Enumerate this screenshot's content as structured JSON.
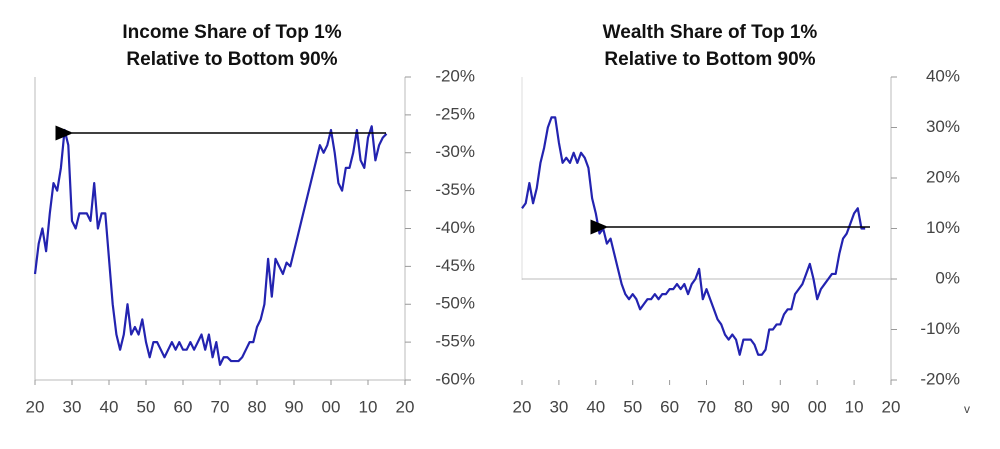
{
  "chart_data": [
    {
      "type": "line",
      "title": [
        "Income Share of Top 1%",
        "Relative to Bottom 90%"
      ],
      "x": [
        1920,
        1921,
        1922,
        1923,
        1924,
        1925,
        1926,
        1927,
        1928,
        1929,
        1930,
        1931,
        1932,
        1933,
        1934,
        1935,
        1936,
        1937,
        1938,
        1939,
        1940,
        1941,
        1942,
        1943,
        1944,
        1945,
        1946,
        1947,
        1948,
        1949,
        1950,
        1951,
        1952,
        1953,
        1954,
        1955,
        1956,
        1957,
        1958,
        1959,
        1960,
        1961,
        1962,
        1963,
        1964,
        1965,
        1966,
        1967,
        1968,
        1969,
        1970,
        1971,
        1972,
        1973,
        1974,
        1975,
        1976,
        1977,
        1978,
        1979,
        1980,
        1981,
        1982,
        1983,
        1984,
        1985,
        1986,
        1987,
        1988,
        1989,
        1990,
        1991,
        1992,
        1993,
        1994,
        1995,
        1996,
        1997,
        1998,
        1999,
        2000,
        2001,
        2002,
        2003,
        2004,
        2005,
        2006,
        2007,
        2008,
        2009,
        2010,
        2011,
        2012,
        2013,
        2014,
        2015
      ],
      "series": [
        {
          "color": "#2323b0",
          "values": [
            -46,
            -42,
            -40,
            -43,
            -38,
            -34,
            -35,
            -32,
            -27,
            -29,
            -39,
            -40,
            -38,
            -38,
            -38,
            -39,
            -34,
            -40,
            -38,
            -38,
            -44,
            -50,
            -54,
            -56,
            -54,
            -50,
            -54,
            -53,
            -54,
            -52,
            -55,
            -57,
            -55,
            -55,
            -56,
            -57,
            -56,
            -55,
            -56,
            -55,
            -56,
            -56,
            -55,
            -56,
            -55,
            -54,
            -56,
            -54,
            -57,
            -55,
            -58,
            -57,
            -57,
            -57.5,
            -57.5,
            -57.5,
            -57,
            -56,
            -55,
            -55,
            -53,
            -52,
            -50,
            -44,
            -49,
            -44,
            -45,
            -46,
            -44.5,
            -45,
            -43,
            -41,
            -39,
            -37,
            -35,
            -33,
            -31,
            -29,
            -30,
            -29,
            -27,
            -30,
            -34,
            -35,
            -32,
            -32,
            -30,
            -27,
            -31,
            -32,
            -28,
            -26.5,
            -31,
            -29,
            -28,
            -27.5
          ]
        }
      ],
      "xlim": [
        1920,
        2020
      ],
      "xticks": [
        {
          "value": 1920,
          "label": "20"
        },
        {
          "value": 1930,
          "label": "30"
        },
        {
          "value": 1940,
          "label": "40"
        },
        {
          "value": 1950,
          "label": "50"
        },
        {
          "value": 1960,
          "label": "60"
        },
        {
          "value": 1970,
          "label": "70"
        },
        {
          "value": 1980,
          "label": "80"
        },
        {
          "value": 1990,
          "label": "90"
        },
        {
          "value": 2000,
          "label": "00"
        },
        {
          "value": 2010,
          "label": "10"
        },
        {
          "value": 2020,
          "label": "20"
        }
      ],
      "ylim": [
        -60,
        -20
      ],
      "yticks": [
        {
          "value": -20,
          "label": "-20%"
        },
        {
          "value": -25,
          "label": "-25%"
        },
        {
          "value": -30,
          "label": "-30%"
        },
        {
          "value": -35,
          "label": "-35%"
        },
        {
          "value": -40,
          "label": "-40%"
        },
        {
          "value": -45,
          "label": "-45%"
        },
        {
          "value": -50,
          "label": "-50%"
        },
        {
          "value": -55,
          "label": "-55%"
        },
        {
          "value": -60,
          "label": "-60%"
        }
      ],
      "zero_line": false
    },
    {
      "type": "line",
      "title": [
        "Wealth Share of Top 1%",
        "Relative to Bottom 90%"
      ],
      "x": [
        1920,
        1921,
        1922,
        1923,
        1924,
        1925,
        1926,
        1927,
        1928,
        1929,
        1930,
        1931,
        1932,
        1933,
        1934,
        1935,
        1936,
        1937,
        1938,
        1939,
        1940,
        1941,
        1942,
        1943,
        1944,
        1945,
        1946,
        1947,
        1948,
        1949,
        1950,
        1951,
        1952,
        1953,
        1954,
        1955,
        1956,
        1957,
        1958,
        1959,
        1960,
        1961,
        1962,
        1963,
        1964,
        1965,
        1966,
        1967,
        1968,
        1969,
        1970,
        1971,
        1972,
        1973,
        1974,
        1975,
        1976,
        1977,
        1978,
        1979,
        1980,
        1981,
        1982,
        1983,
        1984,
        1985,
        1986,
        1987,
        1988,
        1989,
        1990,
        1991,
        1992,
        1993,
        1994,
        1995,
        1996,
        1997,
        1998,
        1999,
        2000,
        2001,
        2002,
        2003,
        2004,
        2005,
        2006,
        2007,
        2008,
        2009,
        2010,
        2011,
        2012,
        2013
      ],
      "series": [
        {
          "color": "#2323b0",
          "values": [
            14,
            15,
            19,
            15,
            18,
            23,
            26,
            30,
            32,
            32,
            27,
            23,
            24,
            23,
            25,
            23,
            25,
            24,
            22,
            16,
            13,
            9,
            10,
            7,
            8,
            5,
            2,
            -1,
            -3,
            -4,
            -3,
            -4,
            -6,
            -5,
            -4,
            -4,
            -3,
            -4,
            -3,
            -3,
            -2,
            -2,
            -1,
            -2,
            -1,
            -3,
            -1,
            0,
            2,
            -4,
            -2,
            -4,
            -6,
            -8,
            -9,
            -11,
            -12,
            -11,
            -12,
            -15,
            -12,
            -12,
            -12,
            -13,
            -15,
            -15,
            -14,
            -10,
            -10,
            -9,
            -9,
            -7,
            -6,
            -6,
            -3,
            -2,
            -1,
            1,
            3,
            0,
            -4,
            -2,
            -1,
            0,
            1,
            1,
            5,
            8,
            9,
            11,
            13,
            14,
            10,
            10
          ]
        }
      ],
      "xlim": [
        1920,
        2020
      ],
      "xticks": [
        {
          "value": 1920,
          "label": "20"
        },
        {
          "value": 1930,
          "label": "30"
        },
        {
          "value": 1940,
          "label": "40"
        },
        {
          "value": 1950,
          "label": "50"
        },
        {
          "value": 1960,
          "label": "60"
        },
        {
          "value": 1970,
          "label": "70"
        },
        {
          "value": 1980,
          "label": "80"
        },
        {
          "value": 1990,
          "label": "90"
        },
        {
          "value": 2000,
          "label": "00"
        },
        {
          "value": 2010,
          "label": "10"
        },
        {
          "value": 2020,
          "label": "20"
        }
      ],
      "ylim": [
        -20,
        40
      ],
      "yticks": [
        {
          "value": 40,
          "label": "40%"
        },
        {
          "value": 30,
          "label": "30%"
        },
        {
          "value": 20,
          "label": "20%"
        },
        {
          "value": 10,
          "label": "10%"
        },
        {
          "value": 0,
          "label": "0%"
        },
        {
          "value": -10,
          "label": "-10%"
        },
        {
          "value": -20,
          "label": "-20%"
        }
      ],
      "zero_line": true
    }
  ],
  "footer_mark": "v"
}
